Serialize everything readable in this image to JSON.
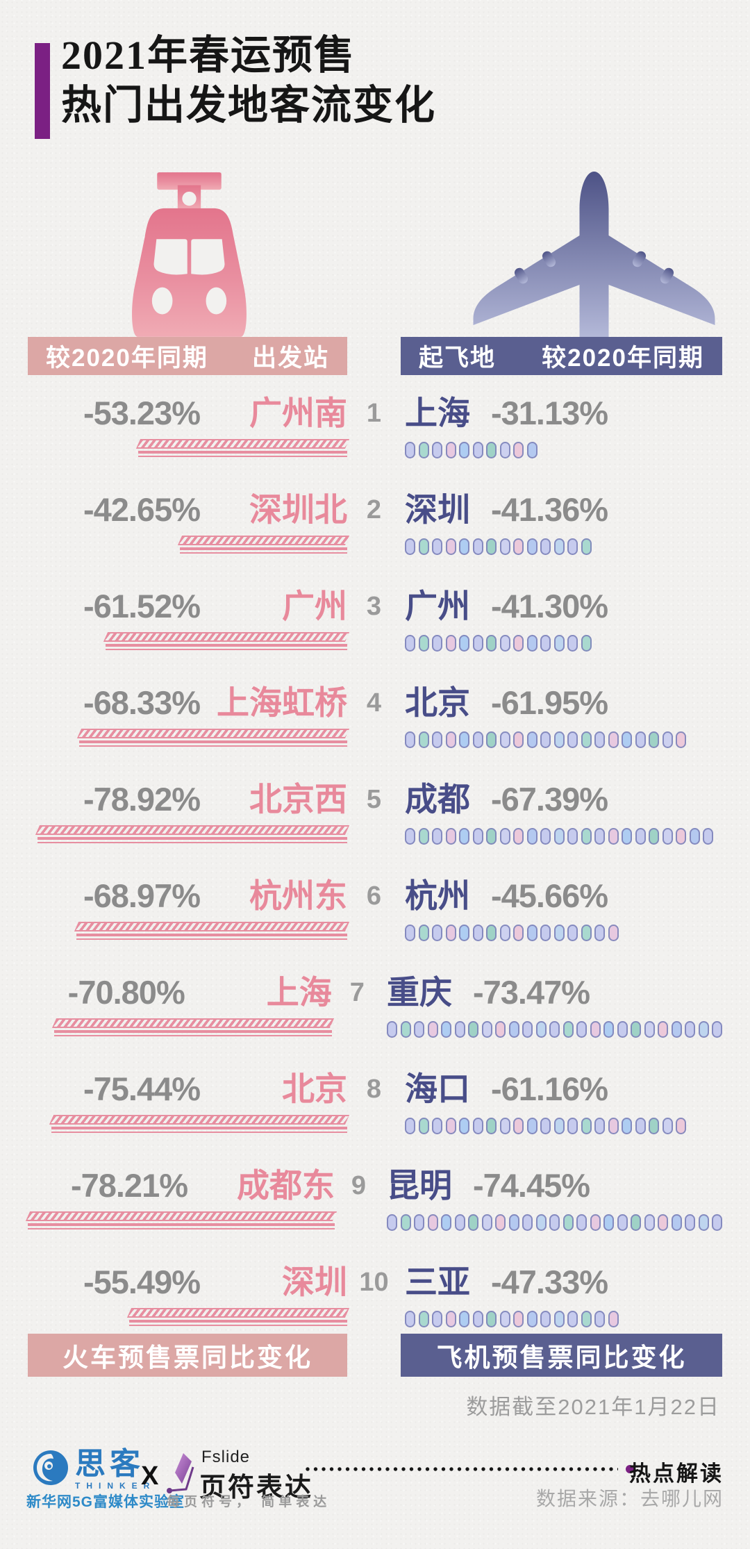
{
  "title": {
    "line1": "2021年春运预售",
    "line2": "热门出发地客流变化"
  },
  "accent_color": "#7b2083",
  "train_panel": {
    "header_period": "较2020年同期",
    "header_station": "出发站",
    "footer_label": "火车预售票同比变化",
    "icon": "train-front-icon",
    "color": "#e8899b",
    "bar_color": "#dca7a5"
  },
  "plane_panel": {
    "header_city": "起飞地",
    "header_period": "较2020年同期",
    "footer_label": "飞机预售票同比变化",
    "icon": "airplane-top-icon",
    "color": "#484d88",
    "bar_color": "#5a5f90"
  },
  "rows": [
    {
      "rank": "1",
      "train_pct": "-53.23%",
      "train_station": "广州南",
      "train_value": 53.23,
      "plane_city": "上海",
      "plane_pct": "-31.13%",
      "plane_value": 31.13,
      "plane_dots": 10
    },
    {
      "rank": "2",
      "train_pct": "-42.65%",
      "train_station": "深圳北",
      "train_value": 42.65,
      "plane_city": "深圳",
      "plane_pct": "-41.36%",
      "plane_value": 41.36,
      "plane_dots": 14
    },
    {
      "rank": "3",
      "train_pct": "-61.52%",
      "train_station": "广州",
      "train_value": 61.52,
      "plane_city": "广州",
      "plane_pct": "-41.30%",
      "plane_value": 41.3,
      "plane_dots": 14
    },
    {
      "rank": "4",
      "train_pct": "-68.33%",
      "train_station": "上海虹桥",
      "train_value": 68.33,
      "plane_city": "北京",
      "plane_pct": "-61.95%",
      "plane_value": 61.95,
      "plane_dots": 21
    },
    {
      "rank": "5",
      "train_pct": "-78.92%",
      "train_station": "北京西",
      "train_value": 78.92,
      "plane_city": "成都",
      "plane_pct": "-67.39%",
      "plane_value": 67.39,
      "plane_dots": 23
    },
    {
      "rank": "6",
      "train_pct": "-68.97%",
      "train_station": "杭州东",
      "train_value": 68.97,
      "plane_city": "杭州",
      "plane_pct": "-45.66%",
      "plane_value": 45.66,
      "plane_dots": 16
    },
    {
      "rank": "7",
      "train_pct": "-70.80%",
      "train_station": "上海",
      "train_value": 70.8,
      "plane_city": "重庆",
      "plane_pct": "-73.47%",
      "plane_value": 73.47,
      "plane_dots": 25
    },
    {
      "rank": "8",
      "train_pct": "-75.44%",
      "train_station": "北京",
      "train_value": 75.44,
      "plane_city": "海口",
      "plane_pct": "-61.16%",
      "plane_value": 61.16,
      "plane_dots": 21
    },
    {
      "rank": "9",
      "train_pct": "-78.21%",
      "train_station": "成都东",
      "train_value": 78.21,
      "plane_city": "昆明",
      "plane_pct": "-74.45%",
      "plane_value": 74.45,
      "plane_dots": 25
    },
    {
      "rank": "10",
      "train_pct": "-55.49%",
      "train_station": "深圳",
      "train_value": 55.49,
      "plane_city": "三亚",
      "plane_pct": "-47.33%",
      "plane_value": 47.33,
      "plane_dots": 16
    }
  ],
  "dot_palette": [
    "#c6cbee",
    "#a9d9cf",
    "#c6cbee",
    "#e7c9e0",
    "#aecdf2",
    "#c6cbee",
    "#9fd2c6",
    "#cdd1f0",
    "#ecc9da",
    "#b4c9f0",
    "#c6cbee",
    "#bed5ef"
  ],
  "cutoff_note": "数据截至2021年1月22日",
  "footer": {
    "thinker_name": "思客",
    "thinker_en": "THINKER",
    "thinker_org": "新华网5G富媒体实验室",
    "collab": "X",
    "fslide_en": "Fslide",
    "fslide_cn": "页符表达",
    "fslide_slogan": "每页符号， 简单表达",
    "hot_tag": "热点解读",
    "source": "数据来源：去哪儿网"
  },
  "chart_data": {
    "type": "bar",
    "title": "2021年春运预售 热门出发地客流变化",
    "note": "数据截至2021年1月22日",
    "source": "去哪儿网",
    "rank": [
      1,
      2,
      3,
      4,
      5,
      6,
      7,
      8,
      9,
      10
    ],
    "series": [
      {
        "name": "火车预售票同比变化（较2020年同期，出发站）",
        "categories": [
          "广州南",
          "深圳北",
          "广州",
          "上海虹桥",
          "北京西",
          "杭州东",
          "上海",
          "北京",
          "成都东",
          "深圳"
        ],
        "values": [
          -53.23,
          -42.65,
          -61.52,
          -68.33,
          -78.92,
          -68.97,
          -70.8,
          -75.44,
          -78.21,
          -55.49
        ]
      },
      {
        "name": "飞机预售票同比变化（较2020年同期，起飞地）",
        "categories": [
          "上海",
          "深圳",
          "广州",
          "北京",
          "成都",
          "杭州",
          "重庆",
          "海口",
          "昆明",
          "三亚"
        ],
        "values": [
          -31.13,
          -41.36,
          -41.3,
          -61.95,
          -67.39,
          -45.66,
          -73.47,
          -61.16,
          -74.45,
          -47.33
        ]
      }
    ]
  }
}
